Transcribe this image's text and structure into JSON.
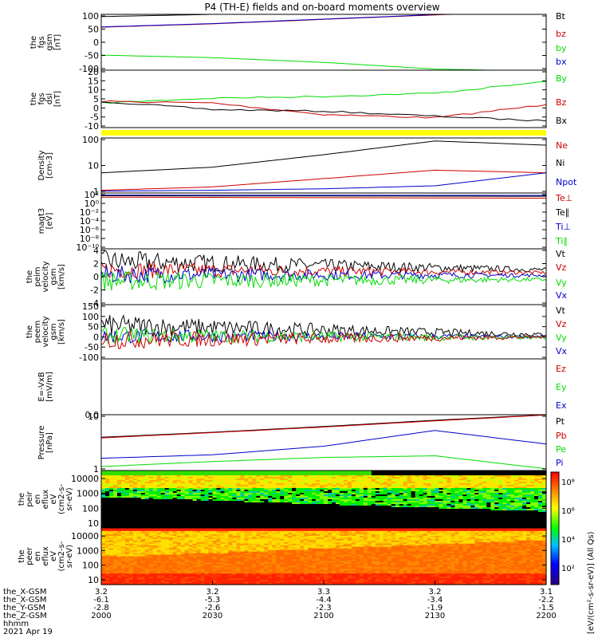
{
  "title": "P4 (TH-E) fields and on-board moments overview",
  "colors": {
    "black": "#000000",
    "red": "#cc0000",
    "green": "#00dd00",
    "blue": "#0000cc",
    "yellow": "#ffff00"
  },
  "chart_data": [
    {
      "type": "line",
      "name": "fgs_gsm",
      "ylabel": [
        "the",
        "fgs",
        "gsm",
        "[nT]"
      ],
      "ylim": [
        -100,
        100
      ],
      "yticks": [
        "100",
        "50",
        "0",
        "-50",
        "-100"
      ],
      "legend": [
        {
          "label": "Bt",
          "color": "black"
        },
        {
          "label": "bz",
          "color": "red"
        },
        {
          "label": "by",
          "color": "green"
        },
        {
          "label": "bx",
          "color": "blue"
        }
      ],
      "series": [
        {
          "color": "black",
          "x": [
            2000,
            2030,
            2100,
            2130,
            2200
          ],
          "y": [
            92,
            100,
            106,
            112,
            118
          ]
        },
        {
          "color": "red",
          "x": [
            2000,
            2030,
            2100,
            2130,
            2200
          ],
          "y": [
            54,
            66,
            82,
            98,
            112
          ]
        },
        {
          "color": "blue",
          "x": [
            2000,
            2030,
            2100,
            2130,
            2200
          ],
          "y": [
            55,
            67,
            83,
            99,
            113
          ]
        },
        {
          "color": "green",
          "x": [
            2000,
            2030,
            2100,
            2130,
            2200
          ],
          "y": [
            -46,
            -55,
            -72,
            -96,
            -104
          ]
        }
      ]
    },
    {
      "type": "line",
      "name": "fgs_dsl",
      "ylabel": [
        "the",
        "fgs",
        "dsl",
        "[nT]"
      ],
      "ylim": [
        -13,
        22
      ],
      "yticks": [
        "20",
        "15",
        "10",
        "5",
        "0",
        "-5",
        "-10"
      ],
      "legend": [
        {
          "label": "By",
          "color": "green"
        },
        {
          "label": "Bz",
          "color": "red"
        },
        {
          "label": "Bx",
          "color": "black"
        }
      ],
      "series": [
        {
          "color": "green",
          "x": [
            2000,
            2030,
            2100,
            2130,
            2200
          ],
          "y": [
            2,
            5,
            6,
            8,
            15
          ]
        },
        {
          "color": "red",
          "x": [
            2000,
            2030,
            2100,
            2130,
            2200
          ],
          "y": [
            3,
            2,
            -5,
            -7,
            1
          ]
        },
        {
          "color": "black",
          "x": [
            2000,
            2030,
            2100,
            2130,
            2200
          ],
          "y": [
            3,
            -2,
            -3,
            -6,
            -9
          ]
        }
      ]
    },
    {
      "type": "line",
      "name": "density",
      "ylabel": [
        "Density",
        "[cm-3]"
      ],
      "ylim": [
        1,
        200
      ],
      "log": true,
      "yticks": [
        "100",
        "10",
        "1"
      ],
      "legend": [
        {
          "label": "Ne",
          "color": "red"
        },
        {
          "label": "Ni",
          "color": "black"
        },
        {
          "label": "Npot",
          "color": "blue"
        }
      ],
      "series": [
        {
          "color": "black",
          "x": [
            2000,
            2030,
            2100,
            2130,
            2200
          ],
          "y": [
            7,
            12,
            40,
            150,
            100
          ]
        },
        {
          "color": "red",
          "x": [
            2000,
            2030,
            2100,
            2130,
            2200
          ],
          "y": [
            1.3,
            1.8,
            4,
            9,
            7
          ]
        },
        {
          "color": "blue",
          "x": [
            2000,
            2030,
            2100,
            2130,
            2200
          ],
          "y": [
            1.2,
            1.3,
            1.5,
            2,
            7
          ]
        }
      ]
    },
    {
      "type": "line",
      "name": "magt3",
      "ylabel": [
        "magt3",
        "[eV]"
      ],
      "ylim": [
        1e-10,
        10000
      ],
      "log": true,
      "yticks": [
        "10²",
        "10⁰",
        "10⁻²",
        "10⁻⁴",
        "10⁻⁶",
        "10⁻⁸",
        "10⁻¹⁰"
      ],
      "legend": [
        {
          "label": "Te⊥",
          "color": "red"
        },
        {
          "label": "Te∥",
          "color": "black"
        },
        {
          "label": "Ti⊥",
          "color": "blue"
        },
        {
          "label": "Ti∥",
          "color": "green"
        }
      ],
      "series": [
        {
          "color": "black",
          "x": [
            2000,
            2200
          ],
          "y": [
            2000,
            1500
          ]
        },
        {
          "color": "red",
          "x": [
            2000,
            2200
          ],
          "y": [
            900,
            500
          ]
        },
        {
          "color": "blue",
          "x": [
            2000,
            2200
          ],
          "y": [
            3000,
            2500
          ]
        }
      ]
    },
    {
      "type": "line",
      "name": "peim_velocity",
      "ylabel": [
        "the",
        "peim",
        "velocity",
        "gsm",
        "[km/s]"
      ],
      "ylim": [
        -4,
        4
      ],
      "yticks": [
        "4",
        "2",
        "0",
        "-2",
        "-4"
      ],
      "legend": [
        {
          "label": "Vt",
          "color": "black"
        },
        {
          "label": "Vz",
          "color": "red"
        },
        {
          "label": "Vy",
          "color": "green"
        },
        {
          "label": "Vx",
          "color": "blue"
        }
      ],
      "series": [
        {
          "color": "black",
          "x": [
            2000,
            2200
          ],
          "y": [
            2.2,
            1.0
          ],
          "noise": [
            1.6,
            0.3
          ]
        },
        {
          "color": "red",
          "x": [
            2000,
            2200
          ],
          "y": [
            1.0,
            0.6
          ],
          "noise": [
            1.3,
            0.2
          ]
        },
        {
          "color": "blue",
          "x": [
            2000,
            2200
          ],
          "y": [
            0.3,
            0.2
          ],
          "noise": [
            1.3,
            0.2
          ]
        },
        {
          "color": "green",
          "x": [
            2000,
            2200
          ],
          "y": [
            -0.6,
            -0.4
          ],
          "noise": [
            1.5,
            0.25
          ]
        }
      ]
    },
    {
      "type": "line",
      "name": "peem_velocity",
      "ylabel": [
        "the",
        "peem",
        "velocity",
        "gsm",
        "[km/s]"
      ],
      "ylim": [
        -100,
        150
      ],
      "yticks": [
        "150",
        "100",
        "50",
        "0",
        "-50",
        "-100"
      ],
      "legend": [
        {
          "label": "Vt",
          "color": "black"
        },
        {
          "label": "Vz",
          "color": "red"
        },
        {
          "label": "Vy",
          "color": "green"
        },
        {
          "label": "Vx",
          "color": "blue"
        }
      ],
      "series": [
        {
          "color": "black",
          "x": [
            2000,
            2200
          ],
          "y": [
            55,
            12
          ],
          "noise": [
            50,
            8
          ]
        },
        {
          "color": "blue",
          "x": [
            2000,
            2200
          ],
          "y": [
            5,
            2
          ],
          "noise": [
            35,
            6
          ]
        },
        {
          "color": "green",
          "x": [
            2000,
            2200
          ],
          "y": [
            8,
            -3
          ],
          "noise": [
            40,
            7
          ]
        },
        {
          "color": "red",
          "x": [
            2000,
            2200
          ],
          "y": [
            -12,
            0
          ],
          "noise": [
            45,
            6
          ]
        }
      ]
    },
    {
      "type": "line",
      "name": "e_vxb",
      "ylabel": [
        "E=-VxB",
        "[mV/m]"
      ],
      "yticks": [
        "0.0"
      ],
      "legend": [
        {
          "label": "Ez",
          "color": "red"
        },
        {
          "label": "Ey",
          "color": "green"
        },
        {
          "label": "Ex",
          "color": "blue"
        }
      ],
      "series": []
    },
    {
      "type": "line",
      "name": "pressure",
      "ylabel": [
        "Pressure",
        "[nPa]"
      ],
      "ylim": [
        0.1,
        30
      ],
      "log": true,
      "yticks": [
        "10",
        "1"
      ],
      "legend": [
        {
          "label": "Pt",
          "color": "black"
        },
        {
          "label": "Pb",
          "color": "red"
        },
        {
          "label": "Pe",
          "color": "green"
        },
        {
          "label": "Pi",
          "color": "blue"
        }
      ],
      "series": [
        {
          "color": "black",
          "x": [
            2000,
            2030,
            2100,
            2130,
            2200
          ],
          "y": [
            3,
            5,
            9,
            17,
            30
          ]
        },
        {
          "color": "red",
          "x": [
            2000,
            2030,
            2100,
            2130,
            2200
          ],
          "y": [
            2.8,
            4.8,
            8.5,
            16,
            29
          ]
        },
        {
          "color": "blue",
          "x": [
            2000,
            2030,
            2100,
            2130,
            2200
          ],
          "y": [
            0.35,
            0.5,
            1.2,
            6,
            1.5
          ]
        },
        {
          "color": "green",
          "x": [
            2000,
            2030,
            2100,
            2130,
            2200
          ],
          "y": [
            0.15,
            0.25,
            0.38,
            0.45,
            0.12
          ]
        }
      ]
    },
    {
      "type": "heatmap",
      "name": "peir_en_eflux",
      "ylabel": [
        "the",
        "peir",
        "en",
        "eflux",
        "eV",
        "(cm2-s-",
        "sr-eV)"
      ],
      "ylim": [
        10,
        20000
      ],
      "log": true,
      "yticks": [
        "10000",
        "1000",
        "100",
        "10"
      ]
    },
    {
      "type": "heatmap",
      "name": "peer_en_eflux",
      "ylabel": [
        "the",
        "peer",
        "en",
        "eflux",
        "eV",
        "(cm2-s-",
        "sr-eV)"
      ],
      "ylim": [
        10,
        20000
      ],
      "log": true,
      "yticks": [
        "10000",
        "1000",
        "100",
        "10"
      ]
    }
  ],
  "colorbar": {
    "label": "[eV/(cm²-s-sr-eV)] (All Qs)",
    "ticks": [
      "10⁸",
      "10⁶",
      "10⁴",
      "10²"
    ]
  },
  "x_axis": {
    "hhmm": [
      "2000",
      "2030",
      "2100",
      "2130",
      "2200"
    ],
    "rows": [
      {
        "label": "the_X-GSM",
        "values": [
          "3.2",
          "3.2",
          "3.3",
          "3.2",
          "3.1"
        ]
      },
      {
        "label": "the_X-GSM",
        "values": [
          "-6.1",
          "-5.3",
          "-4.4",
          "-3.4",
          "-2.2"
        ]
      },
      {
        "label": "the_Y-GSM",
        "values": [
          "-2.8",
          "-2.6",
          "-2.3",
          "-1.9",
          "-1.5"
        ]
      },
      {
        "label": "the_Z-GSM",
        "values": []
      },
      {
        "label": "hhmm",
        "values": []
      }
    ],
    "date": "2021 Apr 19"
  }
}
